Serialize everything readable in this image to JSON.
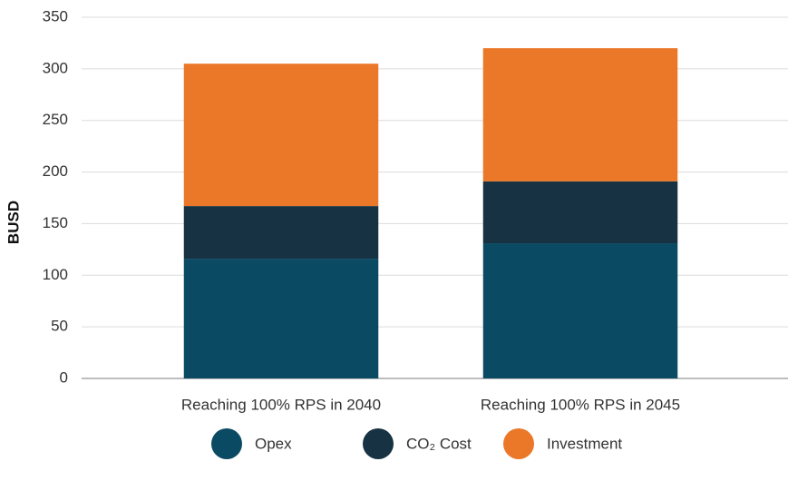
{
  "chart_data": {
    "type": "stacked_bar",
    "y_label": "BUSD",
    "categories": [
      "Reaching 100% RPS in 2040",
      "Reaching 100% RPS in 2045"
    ],
    "series": [
      {
        "name": "Opex",
        "color": "#0b4a63",
        "values": [
          116,
          131
        ]
      },
      {
        "name": "CO₂ Cost",
        "color": "#163243",
        "values": [
          51,
          60
        ]
      },
      {
        "name": "Investment",
        "color": "#eb7728",
        "values": [
          138,
          129
        ]
      }
    ],
    "ylim": [
      0,
      350
    ],
    "yticks": [
      0,
      50,
      100,
      150,
      200,
      250,
      300,
      350
    ],
    "grid": true,
    "legend": "bottom"
  }
}
